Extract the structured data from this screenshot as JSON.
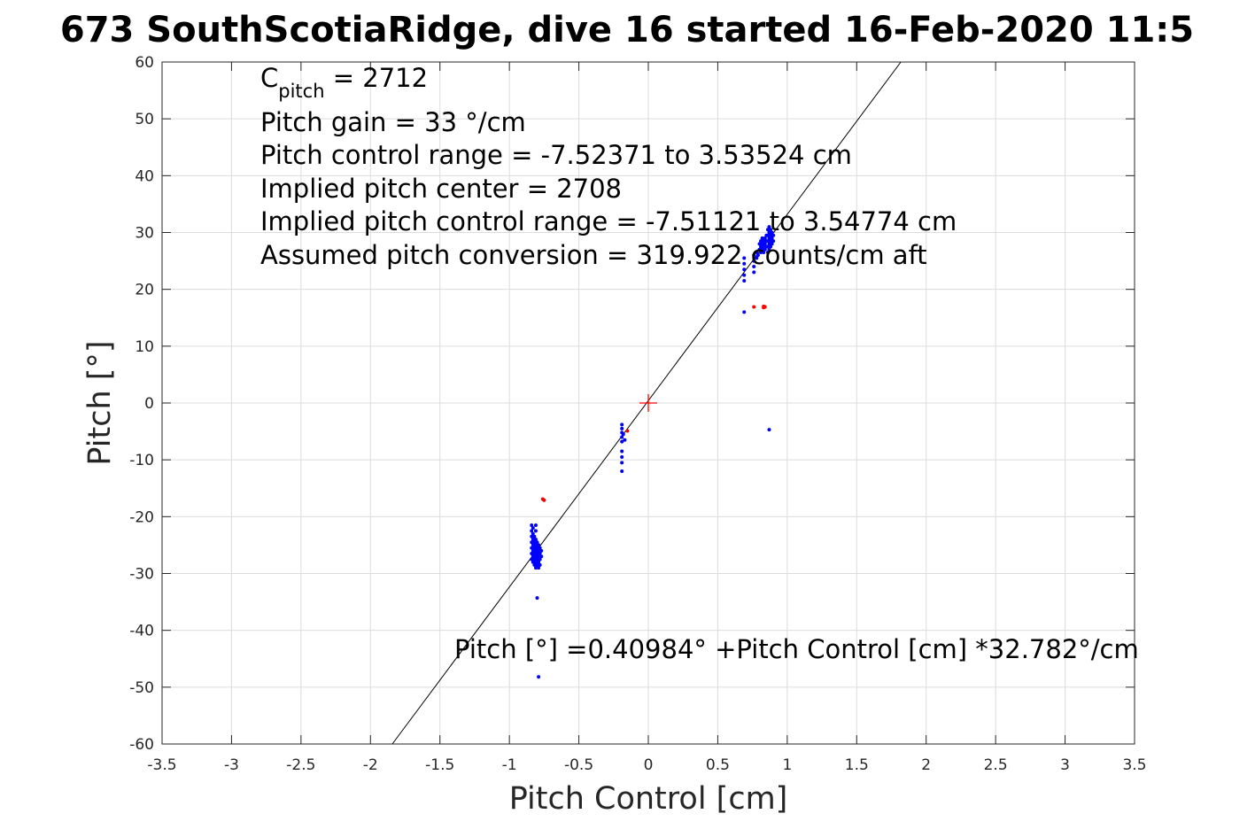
{
  "chart_data": {
    "type": "scatter",
    "title": "673 SouthScotiaRidge, dive 16 started 16-Feb-2020 11:5",
    "xlabel": "Pitch Control [cm]",
    "ylabel": "Pitch [°]",
    "xlim": [
      -3.5,
      3.5
    ],
    "ylim": [
      -60,
      60
    ],
    "x_ticks": [
      -3.5,
      -3,
      -2.5,
      -2,
      -1.5,
      -1,
      -0.5,
      0,
      0.5,
      1,
      1.5,
      2,
      2.5,
      3,
      3.5
    ],
    "x_tick_labels": [
      "-3.5",
      "-3",
      "-2.5",
      "-2",
      "-1.5",
      "-1",
      "-0.5",
      "0",
      "0.5",
      "1",
      "1.5",
      "2",
      "2.5",
      "3",
      "3.5"
    ],
    "y_ticks": [
      60,
      50,
      40,
      30,
      20,
      10,
      0,
      -10,
      -20,
      -30,
      -40,
      -50,
      -60
    ],
    "y_tick_labels": [
      "60",
      "50",
      "40",
      "30",
      "20",
      "10",
      "0",
      "-10",
      "-20",
      "-30",
      "-40",
      "-50",
      "-60"
    ],
    "grid": true,
    "annotations": {
      "c_pitch_label": "C",
      "c_pitch_sub": "pitch",
      "c_pitch_value": " = 2712",
      "lines": [
        "Pitch gain = 33 °/cm",
        "Pitch control range = -7.52371 to 3.53524 cm",
        "Implied pitch center = 2708",
        "Implied pitch control range = -7.51121 to 3.54774 cm",
        "Assumed pitch conversion = 319.922 counts/cm aft"
      ],
      "fit_equation": "Pitch [°] =0.40984° +Pitch Control [cm] *32.782°/cm"
    },
    "fit_line": {
      "name": "fit",
      "intercept": 0.40984,
      "slope": 32.782,
      "color": "#000000"
    },
    "center_marker": {
      "x": 0,
      "y": 0,
      "color": "#ff0000",
      "marker": "+"
    },
    "series": [
      {
        "name": "good",
        "color": "#0000ff",
        "points": [
          [
            -0.84,
            -21.5
          ],
          [
            -0.84,
            -22.5
          ],
          [
            -0.84,
            -23.5
          ],
          [
            -0.84,
            -24.5
          ],
          [
            -0.84,
            -25.5
          ],
          [
            -0.84,
            -26.5
          ],
          [
            -0.84,
            -27.5
          ],
          [
            -0.83,
            -22.0
          ],
          [
            -0.83,
            -23.0
          ],
          [
            -0.83,
            -24.0
          ],
          [
            -0.83,
            -25.0
          ],
          [
            -0.83,
            -26.0
          ],
          [
            -0.83,
            -27.0
          ],
          [
            -0.83,
            -28.0
          ],
          [
            -0.82,
            -23.5
          ],
          [
            -0.82,
            -24.5
          ],
          [
            -0.82,
            -25.5
          ],
          [
            -0.82,
            -26.5
          ],
          [
            -0.82,
            -27.5
          ],
          [
            -0.82,
            -28.5
          ],
          [
            -0.81,
            -21.5
          ],
          [
            -0.81,
            -22.5
          ],
          [
            -0.81,
            -24.0
          ],
          [
            -0.81,
            -25.0
          ],
          [
            -0.81,
            -26.0
          ],
          [
            -0.81,
            -27.0
          ],
          [
            -0.81,
            -28.0
          ],
          [
            -0.81,
            -29.0
          ],
          [
            -0.8,
            -24.5
          ],
          [
            -0.8,
            -25.5
          ],
          [
            -0.8,
            -26.5
          ],
          [
            -0.8,
            -27.5
          ],
          [
            -0.8,
            -28.5
          ],
          [
            -0.79,
            -25.0
          ],
          [
            -0.79,
            -26.0
          ],
          [
            -0.79,
            -27.0
          ],
          [
            -0.79,
            -28.0
          ],
          [
            -0.79,
            -29.0
          ],
          [
            -0.78,
            -25.5
          ],
          [
            -0.78,
            -26.5
          ],
          [
            -0.78,
            -27.5
          ],
          [
            -0.78,
            -28.5
          ],
          [
            -0.77,
            -26.0
          ],
          [
            -0.77,
            -27.0
          ],
          [
            -0.8,
            -34.3
          ],
          [
            -0.79,
            -48.2
          ],
          [
            -0.19,
            -3.8
          ],
          [
            -0.19,
            -4.5
          ],
          [
            -0.19,
            -5.2
          ],
          [
            -0.19,
            -6.0
          ],
          [
            -0.19,
            -6.8
          ],
          [
            -0.19,
            -8.5
          ],
          [
            -0.19,
            -9.5
          ],
          [
            -0.19,
            -10.5
          ],
          [
            -0.19,
            -12.0
          ],
          [
            -0.18,
            -5.5
          ],
          [
            -0.17,
            -6.5
          ],
          [
            0.69,
            21.5
          ],
          [
            0.69,
            22.5
          ],
          [
            0.69,
            23.5
          ],
          [
            0.69,
            24.5
          ],
          [
            0.69,
            25.5
          ],
          [
            0.69,
            16.0
          ],
          [
            0.76,
            23.0
          ],
          [
            0.76,
            24.0
          ],
          [
            0.76,
            25.0
          ],
          [
            0.76,
            26.0
          ],
          [
            0.78,
            25.5
          ],
          [
            0.78,
            26.5
          ],
          [
            0.79,
            26.0
          ],
          [
            0.8,
            27.0
          ],
          [
            0.8,
            28.0
          ],
          [
            0.81,
            26.5
          ],
          [
            0.81,
            27.5
          ],
          [
            0.81,
            28.5
          ],
          [
            0.82,
            27.0
          ],
          [
            0.82,
            28.0
          ],
          [
            0.82,
            29.0
          ],
          [
            0.83,
            26.5
          ],
          [
            0.83,
            27.5
          ],
          [
            0.83,
            28.5
          ],
          [
            0.84,
            27.0
          ],
          [
            0.84,
            28.0
          ],
          [
            0.84,
            29.0
          ],
          [
            0.85,
            27.5
          ],
          [
            0.85,
            28.5
          ],
          [
            0.85,
            29.5
          ],
          [
            0.86,
            26.5
          ],
          [
            0.86,
            27.5
          ],
          [
            0.86,
            28.5
          ],
          [
            0.86,
            29.5
          ],
          [
            0.86,
            30.5
          ],
          [
            0.87,
            27.0
          ],
          [
            0.87,
            28.0
          ],
          [
            0.87,
            29.0
          ],
          [
            0.87,
            30.0
          ],
          [
            0.87,
            31.0
          ],
          [
            0.88,
            27.5
          ],
          [
            0.88,
            28.5
          ],
          [
            0.88,
            29.5
          ],
          [
            0.88,
            30.5
          ],
          [
            0.89,
            28.0
          ],
          [
            0.89,
            29.0
          ],
          [
            0.89,
            30.0
          ],
          [
            0.9,
            28.5
          ],
          [
            0.9,
            29.5
          ],
          [
            0.87,
            -4.7
          ]
        ]
      },
      {
        "name": "bad",
        "color": "#ff0000",
        "points": [
          [
            -0.76,
            -16.9
          ],
          [
            -0.75,
            -17.1
          ],
          [
            -0.15,
            -4.9
          ],
          [
            0.76,
            16.9
          ],
          [
            0.83,
            17.0
          ],
          [
            0.84,
            16.9
          ],
          [
            0.83,
            16.8
          ]
        ]
      }
    ]
  }
}
